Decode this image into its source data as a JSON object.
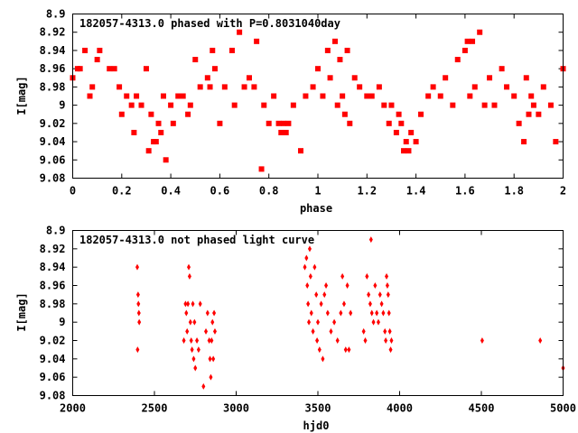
{
  "chart_data": [
    {
      "type": "scatter",
      "title": "182057-4313.0 phased with P=0.8031040day",
      "xlabel": "phase",
      "ylabel": "I[mag]",
      "xlim": [
        0,
        2
      ],
      "ylim": [
        9.08,
        8.9
      ],
      "y_inverted": true,
      "x_ticks": [
        "0",
        "0.2",
        "0.4",
        "0.6",
        "0.8",
        "1",
        "1.2",
        "1.4",
        "1.6",
        "1.8",
        "2"
      ],
      "y_ticks": [
        "8.9",
        "8.92",
        "8.94",
        "8.96",
        "8.98",
        "9",
        "9.02",
        "9.04",
        "9.06",
        "9.08"
      ],
      "marker_color": "#ff0000",
      "grid": false,
      "series": [
        {
          "x": [
            0.0,
            0.02,
            0.03,
            0.05,
            0.07,
            0.08,
            0.1,
            0.11,
            0.15,
            0.17,
            0.19,
            0.2,
            0.22,
            0.24,
            0.25,
            0.26,
            0.28,
            0.3,
            0.31,
            0.32,
            0.33,
            0.34,
            0.35,
            0.36,
            0.37,
            0.38,
            0.4,
            0.41,
            0.43,
            0.45,
            0.47,
            0.48,
            0.5,
            0.52,
            0.55,
            0.56,
            0.57,
            0.58,
            0.6,
            0.62,
            0.65,
            0.66,
            0.68,
            0.7,
            0.72,
            0.74,
            0.75,
            0.77,
            0.78,
            0.8,
            0.82,
            0.84,
            0.85,
            0.86,
            0.87,
            0.88,
            0.9,
            0.93,
            0.95,
            0.98,
            1.0,
            1.02,
            1.04,
            1.05,
            1.07,
            1.08,
            1.09,
            1.1,
            1.11,
            1.12,
            1.13,
            1.15,
            1.17,
            1.2,
            1.22,
            1.25,
            1.27,
            1.29,
            1.3,
            1.32,
            1.33,
            1.34,
            1.35,
            1.36,
            1.37,
            1.38,
            1.4,
            1.42,
            1.45,
            1.47,
            1.5,
            1.52,
            1.55,
            1.57,
            1.6,
            1.61,
            1.62,
            1.63,
            1.64,
            1.66,
            1.68,
            1.7,
            1.72,
            1.75,
            1.77,
            1.8,
            1.82,
            1.84,
            1.85,
            1.86,
            1.87,
            1.88,
            1.9,
            1.92,
            1.95,
            1.97,
            2.0
          ],
          "y": [
            8.97,
            8.96,
            8.96,
            8.94,
            8.99,
            8.98,
            8.95,
            8.94,
            8.96,
            8.96,
            8.98,
            9.01,
            8.99,
            9.0,
            9.03,
            8.99,
            9.0,
            8.96,
            9.05,
            9.01,
            9.04,
            9.04,
            9.02,
            9.03,
            8.99,
            9.06,
            9.0,
            9.02,
            8.99,
            8.99,
            9.01,
            9.0,
            8.95,
            8.98,
            8.97,
            8.98,
            8.94,
            8.96,
            9.02,
            8.98,
            8.94,
            9.0,
            8.92,
            8.98,
            8.97,
            8.98,
            8.93,
            9.07,
            9.0,
            9.02,
            8.99,
            9.02,
            9.03,
            9.02,
            9.03,
            9.02,
            9.0,
            9.05,
            8.99,
            8.98,
            8.96,
            8.99,
            8.94,
            8.97,
            8.93,
            9.0,
            8.95,
            8.99,
            9.01,
            8.94,
            9.02,
            8.97,
            8.98,
            8.99,
            8.99,
            8.98,
            9.0,
            9.02,
            9.0,
            9.03,
            9.01,
            9.02,
            9.05,
            9.04,
            9.05,
            9.03,
            9.04,
            9.01,
            8.99,
            8.98,
            8.99,
            8.97,
            9.0,
            8.95,
            8.94,
            8.93,
            8.99,
            8.93,
            8.98,
            8.92,
            9.0,
            8.97,
            9.0,
            8.96,
            8.98,
            8.99,
            9.02,
            9.04,
            8.97,
            9.01,
            8.99,
            9.0,
            9.01,
            8.98,
            9.0,
            9.04,
            8.96
          ]
        }
      ]
    },
    {
      "type": "scatter",
      "title": "182057-4313.0 not phased light curve",
      "xlabel": "hjd0",
      "ylabel": "I[mag]",
      "xlim": [
        2000,
        5000
      ],
      "ylim": [
        9.08,
        8.9
      ],
      "y_inverted": true,
      "x_ticks": [
        "2000",
        "2500",
        "3000",
        "3500",
        "4000",
        "4500",
        "5000"
      ],
      "y_ticks": [
        "8.9",
        "8.92",
        "8.94",
        "8.96",
        "8.98",
        "9",
        "9.02",
        "9.04",
        "9.06",
        "9.08"
      ],
      "marker_color": "#ff0000",
      "grid": false,
      "series": [
        {
          "x": [
            2395,
            2397,
            2400,
            2402,
            2405,
            2407,
            2680,
            2690,
            2695,
            2700,
            2705,
            2710,
            2715,
            2720,
            2725,
            2730,
            2735,
            2740,
            2745,
            2750,
            2760,
            2770,
            2780,
            2800,
            2815,
            2825,
            2835,
            2840,
            2845,
            2850,
            2855,
            2860,
            2865,
            2870,
            3420,
            3430,
            3435,
            3440,
            3445,
            3450,
            3455,
            3460,
            3470,
            3480,
            3490,
            3495,
            3500,
            3510,
            3520,
            3530,
            3540,
            3550,
            3560,
            3580,
            3600,
            3620,
            3640,
            3650,
            3660,
            3670,
            3680,
            3690,
            3700,
            3780,
            3790,
            3800,
            3810,
            3820,
            3825,
            3830,
            3840,
            3850,
            3860,
            3870,
            3880,
            3890,
            3900,
            3910,
            3915,
            3920,
            3925,
            3930,
            3935,
            3940,
            3945,
            3950,
            4505,
            4860,
            5000
          ],
          "y": [
            8.94,
            9.03,
            8.97,
            8.98,
            8.99,
            9.0,
            9.02,
            8.98,
            8.99,
            9.01,
            8.98,
            8.94,
            8.95,
            9.0,
            9.02,
            9.03,
            8.98,
            9.04,
            9.0,
            9.05,
            9.02,
            9.03,
            8.98,
            9.07,
            9.01,
            8.99,
            9.02,
            9.04,
            9.06,
            9.02,
            9.0,
            9.04,
            8.99,
            9.01,
            8.94,
            8.93,
            8.96,
            8.98,
            9.0,
            8.92,
            8.95,
            8.99,
            9.01,
            8.94,
            8.97,
            9.02,
            9.0,
            9.03,
            8.98,
            9.04,
            8.97,
            8.96,
            8.99,
            9.01,
            9.0,
            9.02,
            8.99,
            8.95,
            8.98,
            9.03,
            8.96,
            9.03,
            8.99,
            9.01,
            9.02,
            8.95,
            8.97,
            8.98,
            8.91,
            8.99,
            9.0,
            8.96,
            8.99,
            9.0,
            8.97,
            8.98,
            8.99,
            9.01,
            9.02,
            8.95,
            8.96,
            8.97,
            8.99,
            9.01,
            9.03,
            9.02,
            9.02,
            9.02,
            9.05
          ]
        }
      ]
    }
  ]
}
